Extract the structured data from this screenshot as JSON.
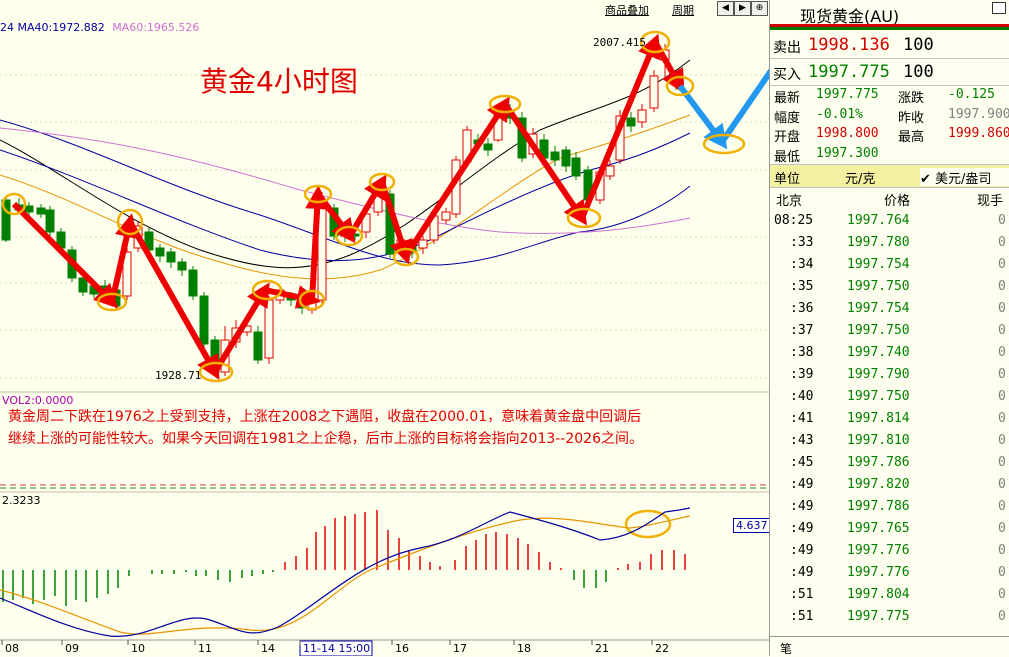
{
  "chart": {
    "ma_header": {
      "ma40": "24 MA40:1972.882",
      "ma60": "MA60:1965.526"
    },
    "title": "黄金4小时图",
    "toolbar": {
      "overlay_label": "商品叠加",
      "period_label": "周期"
    },
    "price_high_label": "2007.415",
    "price_low_label": "1928.71",
    "vol_label": "VOL2:0.0000",
    "commentary": [
      "黄金周二下跌在1976之上受到支持，上涨在2008之下遇阻，收盘在2000.01，意味着黄金盘中回调后",
      "继续上涨的可能性较大。如果今天回调在1981之上企稳，后市上涨的目标将会指向2013--2026之间。"
    ],
    "macd_label": "2.3233",
    "macd_value_box": "4.637",
    "x_labels": [
      "08",
      "09",
      "10",
      "11",
      "14",
      "11-14 15:00",
      "16",
      "17",
      "18",
      "21",
      "22"
    ],
    "colors": {
      "up": "#e00000",
      "down": "#008000",
      "ma5": "#000000",
      "ma10": "#e69500",
      "ma20": "#0000a0",
      "ma60": "#d070d0",
      "arrow_red": "#ee0000",
      "arrow_blue": "#2299ee",
      "circle": "#f0b000"
    }
  },
  "quote": {
    "title": "现货黄金(AU)",
    "sell_label": "卖出",
    "sell_price": "1998.136",
    "sell_qty": "100",
    "buy_label": "买入",
    "buy_price": "1997.775",
    "buy_qty": "100",
    "rows": [
      {
        "l1": "最新",
        "v1": "1997.775",
        "l2": "涨跌",
        "v2": "-0.125"
      },
      {
        "l1": "幅度",
        "v1": "-0.01%",
        "l2": "昨收",
        "v2": "1997.900"
      },
      {
        "l1": "开盘",
        "v1": "1998.800",
        "l2": "最高",
        "v2": "1999.860"
      },
      {
        "l1": "最低",
        "v1": "1997.300",
        "l2": "",
        "v2": ""
      }
    ],
    "unit_label": "单位",
    "unit_value": "元/克",
    "unit_option": "美元/盎司",
    "ticks_header": {
      "c1": "北京",
      "c2": "价格",
      "c3": "现手"
    },
    "ticks": [
      {
        "t": "08:25",
        "p": "1997.764",
        "v": "0"
      },
      {
        "t": ":33",
        "p": "1997.780",
        "v": "0"
      },
      {
        "t": ":34",
        "p": "1997.754",
        "v": "0"
      },
      {
        "t": ":35",
        "p": "1997.750",
        "v": "0"
      },
      {
        "t": ":36",
        "p": "1997.754",
        "v": "0"
      },
      {
        "t": ":37",
        "p": "1997.750",
        "v": "0"
      },
      {
        "t": ":38",
        "p": "1997.740",
        "v": "0"
      },
      {
        "t": ":39",
        "p": "1997.790",
        "v": "0"
      },
      {
        "t": ":40",
        "p": "1997.750",
        "v": "0"
      },
      {
        "t": ":41",
        "p": "1997.814",
        "v": "0"
      },
      {
        "t": ":43",
        "p": "1997.810",
        "v": "0"
      },
      {
        "t": ":45",
        "p": "1997.786",
        "v": "0"
      },
      {
        "t": ":49",
        "p": "1997.820",
        "v": "0"
      },
      {
        "t": ":49",
        "p": "1997.786",
        "v": "0"
      },
      {
        "t": ":49",
        "p": "1997.765",
        "v": "0"
      },
      {
        "t": ":49",
        "p": "1997.776",
        "v": "0"
      },
      {
        "t": ":49",
        "p": "1997.776",
        "v": "0"
      },
      {
        "t": ":51",
        "p": "1997.804",
        "v": "0"
      },
      {
        "t": ":51",
        "p": "1997.775",
        "v": "0"
      }
    ],
    "footer_label": "笔"
  }
}
